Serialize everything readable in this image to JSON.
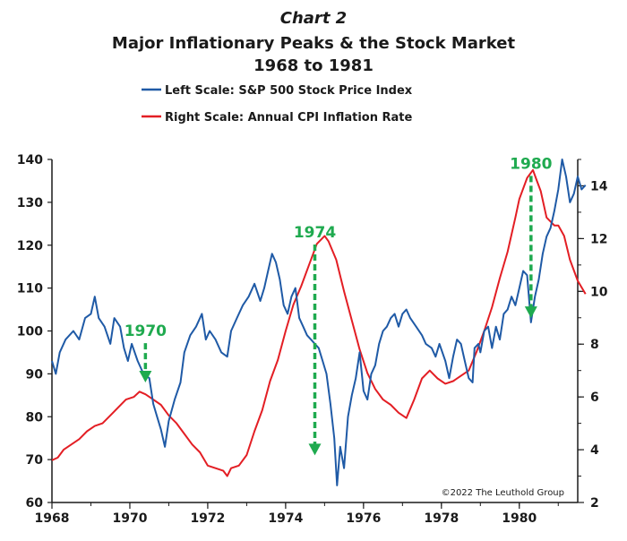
{
  "chart_data": {
    "type": "line",
    "chart_number": "Chart 2",
    "title": "Major Inflationary Peaks & the Stock Market",
    "subtitle": "1968 to 1981",
    "credit": "©2022 The Leuthold Group",
    "colors": {
      "sp500": "#1f5aa6",
      "cpi": "#e31e24",
      "annotation": "#1faa4f",
      "axis": "#1a1a1a"
    },
    "xlim": [
      1968,
      1981.5
    ],
    "x_ticks": [
      "1968",
      "1970",
      "1972",
      "1974",
      "1976",
      "1978",
      "1980"
    ],
    "y_left": {
      "ylim": [
        60,
        140
      ],
      "ticks": [
        "60",
        "70",
        "80",
        "90",
        "100",
        "110",
        "120",
        "130",
        "140"
      ]
    },
    "y_right": {
      "ylim": [
        2,
        15
      ],
      "ticks": [
        "2",
        "4",
        "6",
        "8",
        "10",
        "12",
        "14"
      ]
    },
    "legend_placement": "top-center",
    "series": [
      {
        "name": "Left Scale: S&P 500 Stock Price Index",
        "axis": "left",
        "points": [
          [
            1968.0,
            93
          ],
          [
            1968.1,
            90
          ],
          [
            1968.2,
            95
          ],
          [
            1968.35,
            98
          ],
          [
            1968.55,
            100
          ],
          [
            1968.7,
            98
          ],
          [
            1968.85,
            103
          ],
          [
            1969.0,
            104
          ],
          [
            1969.1,
            108
          ],
          [
            1969.2,
            103
          ],
          [
            1969.35,
            101
          ],
          [
            1969.5,
            97
          ],
          [
            1969.6,
            103
          ],
          [
            1969.75,
            101
          ],
          [
            1969.85,
            96
          ],
          [
            1969.95,
            93
          ],
          [
            1970.05,
            97
          ],
          [
            1970.2,
            93
          ],
          [
            1970.35,
            90
          ],
          [
            1970.5,
            89
          ],
          [
            1970.6,
            83
          ],
          [
            1970.7,
            80
          ],
          [
            1970.8,
            77
          ],
          [
            1970.9,
            73
          ],
          [
            1971.0,
            79
          ],
          [
            1971.15,
            84
          ],
          [
            1971.3,
            88
          ],
          [
            1971.4,
            95
          ],
          [
            1971.55,
            99
          ],
          [
            1971.7,
            101
          ],
          [
            1971.85,
            104
          ],
          [
            1971.95,
            98
          ],
          [
            1972.05,
            100
          ],
          [
            1972.2,
            98
          ],
          [
            1972.35,
            95
          ],
          [
            1972.5,
            94
          ],
          [
            1972.6,
            100
          ],
          [
            1972.75,
            103
          ],
          [
            1972.9,
            106
          ],
          [
            1973.05,
            108
          ],
          [
            1973.2,
            111
          ],
          [
            1973.35,
            107
          ],
          [
            1973.45,
            110
          ],
          [
            1973.55,
            114
          ],
          [
            1973.65,
            118
          ],
          [
            1973.75,
            116
          ],
          [
            1973.85,
            112
          ],
          [
            1973.95,
            106
          ],
          [
            1974.05,
            104
          ],
          [
            1974.15,
            108
          ],
          [
            1974.25,
            110
          ],
          [
            1974.35,
            103
          ],
          [
            1974.45,
            101
          ],
          [
            1974.55,
            99
          ],
          [
            1974.65,
            98
          ],
          [
            1974.75,
            97
          ],
          [
            1974.85,
            96
          ],
          [
            1974.95,
            93
          ],
          [
            1975.05,
            90
          ],
          [
            1975.15,
            83
          ],
          [
            1975.25,
            75
          ],
          [
            1975.32,
            64
          ],
          [
            1975.4,
            73
          ],
          [
            1975.5,
            68
          ],
          [
            1975.6,
            80
          ],
          [
            1975.7,
            85
          ],
          [
            1975.8,
            89
          ],
          [
            1975.9,
            95
          ],
          [
            1976.0,
            86
          ],
          [
            1976.1,
            84
          ],
          [
            1976.2,
            90
          ],
          [
            1976.3,
            92
          ],
          [
            1976.4,
            97
          ],
          [
            1976.5,
            100
          ],
          [
            1976.6,
            101
          ],
          [
            1976.7,
            103
          ],
          [
            1976.8,
            104
          ],
          [
            1976.9,
            101
          ],
          [
            1977.0,
            104
          ],
          [
            1977.1,
            105
          ],
          [
            1977.2,
            103
          ],
          [
            1977.35,
            101
          ],
          [
            1977.5,
            99
          ],
          [
            1977.6,
            97
          ],
          [
            1977.75,
            96
          ],
          [
            1977.85,
            94
          ],
          [
            1977.95,
            97
          ],
          [
            1978.1,
            93
          ],
          [
            1978.2,
            89
          ],
          [
            1978.3,
            94
          ],
          [
            1978.4,
            98
          ],
          [
            1978.5,
            97
          ],
          [
            1978.6,
            93
          ],
          [
            1978.7,
            89
          ],
          [
            1978.8,
            88
          ],
          [
            1978.85,
            96
          ],
          [
            1978.95,
            97
          ],
          [
            1979.0,
            95
          ],
          [
            1979.1,
            100
          ],
          [
            1979.2,
            101
          ],
          [
            1979.3,
            96
          ],
          [
            1979.4,
            101
          ],
          [
            1979.5,
            98
          ],
          [
            1979.6,
            104
          ],
          [
            1979.7,
            105
          ],
          [
            1979.8,
            108
          ],
          [
            1979.9,
            106
          ],
          [
            1980.0,
            110
          ],
          [
            1980.1,
            114
          ],
          [
            1980.2,
            113
          ],
          [
            1980.3,
            102
          ],
          [
            1980.4,
            108
          ],
          [
            1980.5,
            112
          ],
          [
            1980.6,
            118
          ],
          [
            1980.7,
            122
          ],
          [
            1980.8,
            124
          ],
          [
            1980.9,
            128
          ],
          [
            1981.0,
            133
          ],
          [
            1981.1,
            140
          ],
          [
            1981.2,
            136
          ],
          [
            1981.3,
            130
          ],
          [
            1981.4,
            132
          ],
          [
            1981.5,
            136
          ],
          [
            1981.6,
            133
          ],
          [
            1981.7,
            134
          ]
        ]
      },
      {
        "name": "Right Scale: Annual CPI Inflation Rate",
        "axis": "right",
        "points": [
          [
            1968.0,
            3.6
          ],
          [
            1968.15,
            3.7
          ],
          [
            1968.3,
            4.0
          ],
          [
            1968.5,
            4.2
          ],
          [
            1968.7,
            4.4
          ],
          [
            1968.9,
            4.7
          ],
          [
            1969.1,
            4.9
          ],
          [
            1969.3,
            5.0
          ],
          [
            1969.5,
            5.3
          ],
          [
            1969.7,
            5.6
          ],
          [
            1969.9,
            5.9
          ],
          [
            1970.1,
            6.0
          ],
          [
            1970.25,
            6.2
          ],
          [
            1970.4,
            6.1
          ],
          [
            1970.6,
            5.9
          ],
          [
            1970.8,
            5.7
          ],
          [
            1971.0,
            5.3
          ],
          [
            1971.2,
            5.0
          ],
          [
            1971.4,
            4.6
          ],
          [
            1971.6,
            4.2
          ],
          [
            1971.8,
            3.9
          ],
          [
            1972.0,
            3.4
          ],
          [
            1972.2,
            3.3
          ],
          [
            1972.4,
            3.2
          ],
          [
            1972.5,
            3.0
          ],
          [
            1972.6,
            3.3
          ],
          [
            1972.8,
            3.4
          ],
          [
            1973.0,
            3.8
          ],
          [
            1973.2,
            4.7
          ],
          [
            1973.4,
            5.5
          ],
          [
            1973.6,
            6.6
          ],
          [
            1973.8,
            7.4
          ],
          [
            1974.0,
            8.5
          ],
          [
            1974.2,
            9.5
          ],
          [
            1974.4,
            10.2
          ],
          [
            1974.6,
            11.0
          ],
          [
            1974.8,
            11.8
          ],
          [
            1975.0,
            12.1
          ],
          [
            1975.1,
            11.9
          ],
          [
            1975.3,
            11.2
          ],
          [
            1975.5,
            10.0
          ],
          [
            1975.7,
            8.9
          ],
          [
            1975.9,
            7.8
          ],
          [
            1976.1,
            6.9
          ],
          [
            1976.3,
            6.3
          ],
          [
            1976.5,
            5.9
          ],
          [
            1976.7,
            5.7
          ],
          [
            1976.9,
            5.4
          ],
          [
            1977.1,
            5.2
          ],
          [
            1977.3,
            5.9
          ],
          [
            1977.5,
            6.7
          ],
          [
            1977.7,
            7.0
          ],
          [
            1977.9,
            6.7
          ],
          [
            1978.1,
            6.5
          ],
          [
            1978.3,
            6.6
          ],
          [
            1978.5,
            6.8
          ],
          [
            1978.7,
            7.0
          ],
          [
            1978.9,
            7.7
          ],
          [
            1979.1,
            8.5
          ],
          [
            1979.3,
            9.4
          ],
          [
            1979.5,
            10.5
          ],
          [
            1979.7,
            11.5
          ],
          [
            1979.9,
            12.8
          ],
          [
            1980.0,
            13.5
          ],
          [
            1980.2,
            14.3
          ],
          [
            1980.35,
            14.6
          ],
          [
            1980.45,
            14.2
          ],
          [
            1980.55,
            13.8
          ],
          [
            1980.7,
            12.8
          ],
          [
            1980.9,
            12.5
          ],
          [
            1981.0,
            12.5
          ],
          [
            1981.15,
            12.1
          ],
          [
            1981.3,
            11.2
          ],
          [
            1981.5,
            10.4
          ],
          [
            1981.7,
            9.9
          ]
        ]
      }
    ],
    "annotations": [
      {
        "label": "1970",
        "x": 1970.4,
        "y_from": 98,
        "y_to": 88
      },
      {
        "label": "1974",
        "x": 1974.75,
        "y_from": 121,
        "y_to": 71
      },
      {
        "label": "1980",
        "x": 1980.3,
        "y_from": 137,
        "y_to": 103
      }
    ]
  }
}
